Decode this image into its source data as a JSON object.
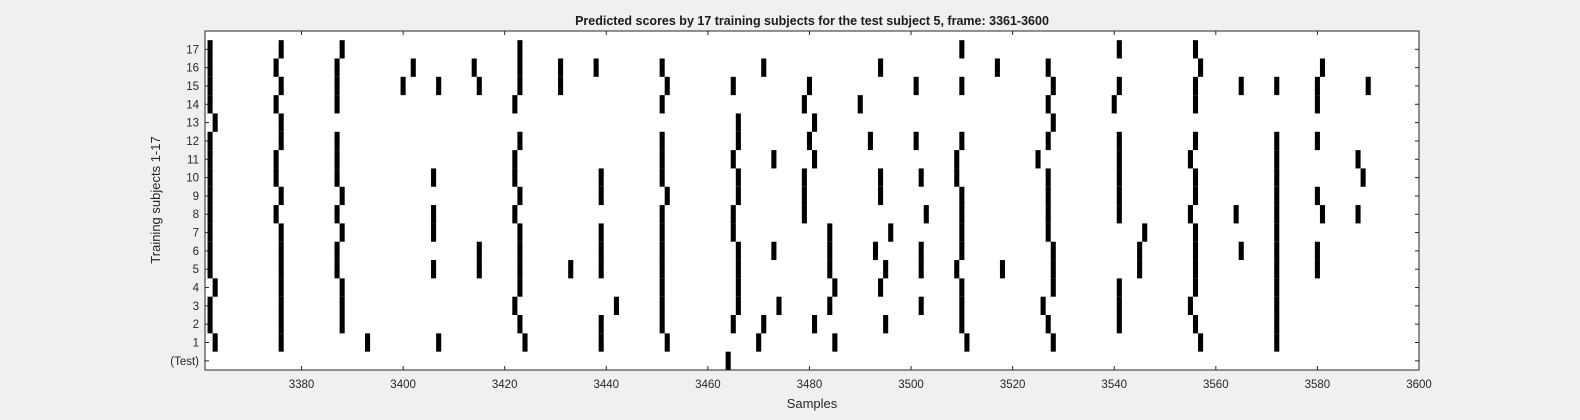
{
  "chart_data": {
    "type": "heatmap",
    "title": "Predicted scores by 17 training subjects for the test subject 5, frame: 3361-3600",
    "xlabel": "Samples",
    "ylabel": "Training subjects 1-17",
    "xlim": [
      3361,
      3600
    ],
    "xticks": [
      3380,
      3400,
      3420,
      3440,
      3460,
      3480,
      3500,
      3520,
      3540,
      3560,
      3580,
      3600
    ],
    "yticklabels": [
      "(Test)",
      "1",
      "2",
      "3",
      "4",
      "5",
      "6",
      "7",
      "8",
      "9",
      "10",
      "11",
      "12",
      "13",
      "14",
      "15",
      "16",
      "17"
    ],
    "grid": false,
    "colors": {
      "mark": "#000000",
      "plot_bg": "#ffffff",
      "figure_bg": "#f0f0f0"
    },
    "rows": [
      {
        "label": "17",
        "x": [
          3362,
          3376,
          3388,
          3423,
          3510,
          3541,
          3556
        ]
      },
      {
        "label": "16",
        "x": [
          3362,
          3375,
          3387,
          3402,
          3414,
          3423,
          3431,
          3438,
          3451,
          3471,
          3494,
          3517,
          3527,
          3557,
          3581
        ]
      },
      {
        "label": "15",
        "x": [
          3362,
          3376,
          3387,
          3400,
          3407,
          3415,
          3423,
          3431,
          3452,
          3465,
          3480,
          3501,
          3510,
          3528,
          3541,
          3556,
          3565,
          3572,
          3580,
          3590
        ]
      },
      {
        "label": "14",
        "x": [
          3362,
          3375,
          3387,
          3422,
          3451,
          3479,
          3490,
          3527,
          3540,
          3556,
          3580
        ]
      },
      {
        "label": "13",
        "x": [
          3363,
          3376,
          3466,
          3481,
          3528
        ]
      },
      {
        "label": "12",
        "x": [
          3362,
          3376,
          3387,
          3423,
          3451,
          3466,
          3480,
          3492,
          3501,
          3510,
          3527,
          3541,
          3556,
          3572,
          3580
        ]
      },
      {
        "label": "11",
        "x": [
          3362,
          3375,
          3387,
          3422,
          3451,
          3465,
          3473,
          3481,
          3509,
          3525,
          3541,
          3555,
          3572,
          3588
        ]
      },
      {
        "label": "10",
        "x": [
          3362,
          3375,
          3387,
          3406,
          3422,
          3439,
          3451,
          3466,
          3479,
          3494,
          3502,
          3509,
          3527,
          3541,
          3556,
          3572,
          3589
        ]
      },
      {
        "label": "9",
        "x": [
          3362,
          3376,
          3388,
          3423,
          3439,
          3452,
          3466,
          3479,
          3494,
          3510,
          3527,
          3541,
          3556,
          3572,
          3580
        ]
      },
      {
        "label": "8",
        "x": [
          3362,
          3375,
          3387,
          3406,
          3422,
          3451,
          3465,
          3479,
          3503,
          3510,
          3527,
          3541,
          3555,
          3564,
          3572,
          3581,
          3588
        ]
      },
      {
        "label": "7",
        "x": [
          3362,
          3376,
          3388,
          3406,
          3423,
          3439,
          3451,
          3465,
          3484,
          3496,
          3510,
          3527,
          3546,
          3556,
          3572
        ]
      },
      {
        "label": "6",
        "x": [
          3362,
          3376,
          3387,
          3415,
          3423,
          3439,
          3451,
          3466,
          3473,
          3484,
          3493,
          3502,
          3510,
          3528,
          3545,
          3556,
          3565,
          3572,
          3580
        ]
      },
      {
        "label": "5",
        "x": [
          3362,
          3376,
          3387,
          3406,
          3415,
          3423,
          3433,
          3439,
          3451,
          3466,
          3484,
          3495,
          3502,
          3509,
          3518,
          3528,
          3545,
          3556,
          3572,
          3580
        ]
      },
      {
        "label": "4",
        "x": [
          3363,
          3376,
          3388,
          3423,
          3451,
          3466,
          3485,
          3494,
          3510,
          3528,
          3541,
          3556,
          3572
        ]
      },
      {
        "label": "3",
        "x": [
          3362,
          3376,
          3388,
          3422,
          3442,
          3451,
          3466,
          3474,
          3484,
          3502,
          3510,
          3526,
          3541,
          3555,
          3572
        ]
      },
      {
        "label": "2",
        "x": [
          3362,
          3376,
          3388,
          3423,
          3439,
          3451,
          3465,
          3471,
          3481,
          3495,
          3510,
          3527,
          3541,
          3556,
          3572
        ]
      },
      {
        "label": "1",
        "x": [
          3363,
          3376,
          3393,
          3407,
          3424,
          3439,
          3452,
          3470,
          3485,
          3511,
          3528,
          3557,
          3572
        ]
      },
      {
        "label": "(Test)",
        "x": [
          3464
        ]
      }
    ]
  }
}
